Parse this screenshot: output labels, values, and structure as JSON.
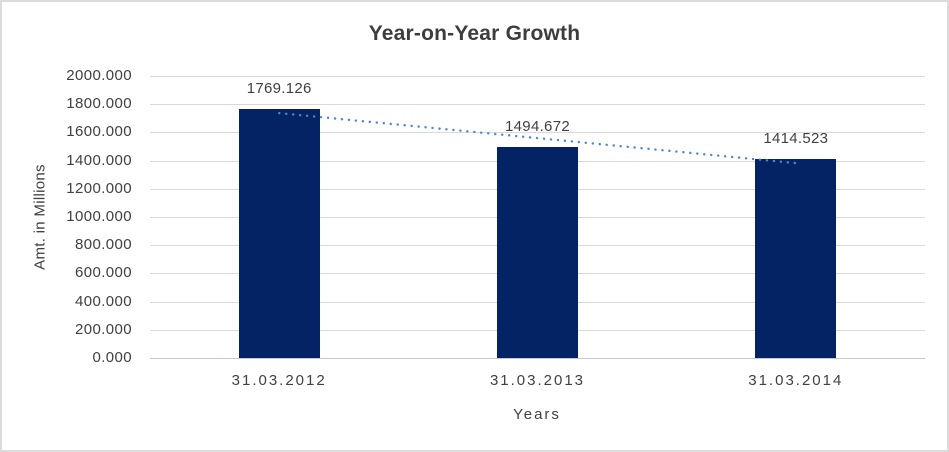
{
  "chart_data": {
    "type": "bar",
    "title": "Year-on-Year Growth",
    "xlabel": "Years",
    "ylabel": "Amt. in Millions",
    "categories": [
      "31.03.2012",
      "31.03.2013",
      "31.03.2014"
    ],
    "values": [
      1769.126,
      1494.672,
      1414.523
    ],
    "data_labels": [
      "1769.126",
      "1494.672",
      "1414.523"
    ],
    "ylim": [
      0,
      2000
    ],
    "ytick_step": 200,
    "ytick_decimals": 3,
    "grid": true,
    "legend": "none",
    "trendline": "linear-dotted",
    "colors": {
      "bar": "#042365",
      "trend": "#4f87c7",
      "grid": "#d9d9d9",
      "axis_line": "#c9c9c9",
      "text": "#404040",
      "title": "#3d3d3d",
      "border": "#dbdbdb"
    }
  }
}
